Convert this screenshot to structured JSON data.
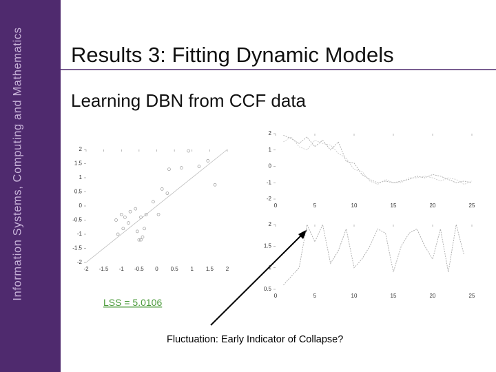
{
  "sidebar": {
    "text": "Information Systems, Computing and Mathematics"
  },
  "title": "Results 3: Fitting Dynamic Models",
  "subtitle": "Learning DBN from CCF data",
  "charts": [
    {
      "type": "scatter",
      "xlim": [
        -2,
        2
      ],
      "ylim": [
        -2,
        2
      ],
      "xticks": [
        -2,
        -1.5,
        -1,
        -0.5,
        0,
        0.5,
        1,
        1.5,
        2
      ],
      "yticks": [
        -2,
        -1.5,
        -1,
        -0.5,
        0,
        0.5,
        1,
        1.5,
        2
      ],
      "fit_line": true,
      "color": "#999999",
      "x": [
        -1.15,
        -1.1,
        -1.0,
        -0.95,
        -0.9,
        -0.8,
        -0.75,
        -0.6,
        -0.55,
        -0.5,
        -0.45,
        -0.4,
        -0.45,
        -0.35,
        -0.3,
        -0.1,
        0.05,
        0.15,
        0.3,
        0.35,
        0.7,
        0.9,
        1.2,
        1.45,
        1.65
      ],
      "y": [
        -0.5,
        -1.0,
        -0.3,
        -0.8,
        -0.4,
        -0.6,
        -0.2,
        -0.1,
        -0.9,
        -1.2,
        -0.4,
        -1.1,
        -1.2,
        -0.8,
        -0.3,
        0.15,
        -0.3,
        0.6,
        0.45,
        1.3,
        1.35,
        1.95,
        1.4,
        1.6,
        0.75
      ]
    },
    {
      "type": "line",
      "xlim": [
        0,
        25
      ],
      "ylim": [
        -2,
        2
      ],
      "xticks": [
        0,
        5,
        10,
        15,
        20,
        25
      ],
      "yticks": [
        -2,
        -1,
        0,
        1,
        2
      ],
      "x": [
        1,
        2,
        3,
        4,
        5,
        6,
        7,
        8,
        9,
        10,
        11,
        12,
        13,
        14,
        15,
        16,
        17,
        18,
        19,
        20,
        21,
        22,
        23,
        24,
        25
      ],
      "series": [
        {
          "color": "#aaaaaa",
          "values": [
            1.9,
            1.7,
            1.4,
            1.8,
            1.2,
            1.6,
            1.0,
            1.5,
            0.3,
            0.2,
            -0.5,
            -0.8,
            -1.0,
            -0.9,
            -1.0,
            -0.9,
            -0.8,
            -0.6,
            -0.7,
            -0.5,
            -0.6,
            -0.8,
            -1.0,
            -0.9,
            -1.0
          ]
        },
        {
          "color": "#cccccc",
          "values": [
            1.5,
            1.8,
            1.2,
            1.0,
            1.6,
            1.4,
            1.3,
            0.8,
            0.5,
            -0.2,
            -0.3,
            -0.9,
            -1.1,
            -0.8,
            -1.0,
            -1.0,
            -0.7,
            -0.7,
            -0.6,
            -0.7,
            -0.9,
            -0.7,
            -0.8,
            -1.1,
            -0.9
          ]
        }
      ]
    },
    {
      "type": "line",
      "xlim": [
        0,
        25
      ],
      "ylim": [
        0.5,
        2
      ],
      "xticks": [
        0,
        5,
        10,
        15,
        20,
        25
      ],
      "yticks": [
        0.5,
        1,
        1.5,
        2
      ],
      "x": [
        1,
        2,
        3,
        4,
        5,
        6,
        7,
        8,
        9,
        10,
        11,
        12,
        13,
        14,
        15,
        16,
        17,
        18,
        19,
        20,
        21,
        22,
        23,
        24
      ],
      "series": [
        {
          "color": "#aaaaaa",
          "values": [
            0.6,
            0.8,
            1.0,
            2.0,
            1.6,
            2.0,
            1.1,
            1.4,
            1.9,
            1.0,
            1.2,
            1.5,
            1.9,
            1.8,
            0.9,
            1.5,
            1.8,
            1.9,
            1.5,
            1.2,
            1.9,
            0.9,
            2.0,
            1.3
          ]
        }
      ]
    }
  ],
  "annotations": {
    "lss": "LSS = 5.0106",
    "caption": "Fluctuation: Early Indicator of Collapse?"
  }
}
